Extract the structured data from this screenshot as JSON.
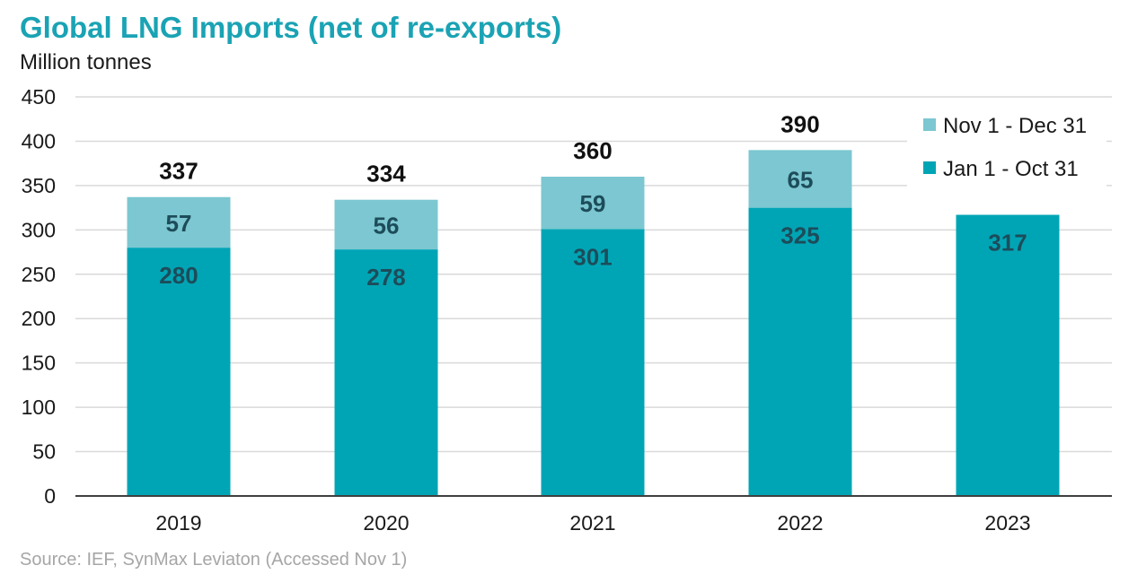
{
  "header": {
    "title": "Global LNG Imports (net of re-exports)",
    "subtitle": "Million tonnes"
  },
  "footer": {
    "source": "Source: IEF, SynMax Leviaton  (Accessed Nov 1)"
  },
  "chart_data": {
    "type": "bar",
    "stacked": true,
    "categories": [
      "2019",
      "2020",
      "2021",
      "2022",
      "2023"
    ],
    "series": [
      {
        "name": "Jan 1 - Oct 31",
        "color": "#00A5B5",
        "values": [
          280,
          278,
          301,
          325,
          317
        ],
        "labels": [
          "280",
          "278",
          "301",
          "325",
          "317"
        ]
      },
      {
        "name": "Nov 1 - Dec 31",
        "color": "#7CC7D1",
        "values": [
          57,
          56,
          59,
          65,
          null
        ],
        "labels": [
          "57",
          "56",
          "59",
          "65",
          ""
        ]
      }
    ],
    "totals": [
      "337",
      "334",
      "360",
      "390",
      ""
    ],
    "yticks": [
      "0",
      "50",
      "100",
      "150",
      "200",
      "250",
      "300",
      "350",
      "400",
      "450"
    ],
    "ylim": [
      0,
      450
    ],
    "grid": true,
    "legend": {
      "placement": "top-right",
      "order": [
        "Nov 1 - Dec 31",
        "Jan 1 - Oct 31"
      ]
    }
  }
}
